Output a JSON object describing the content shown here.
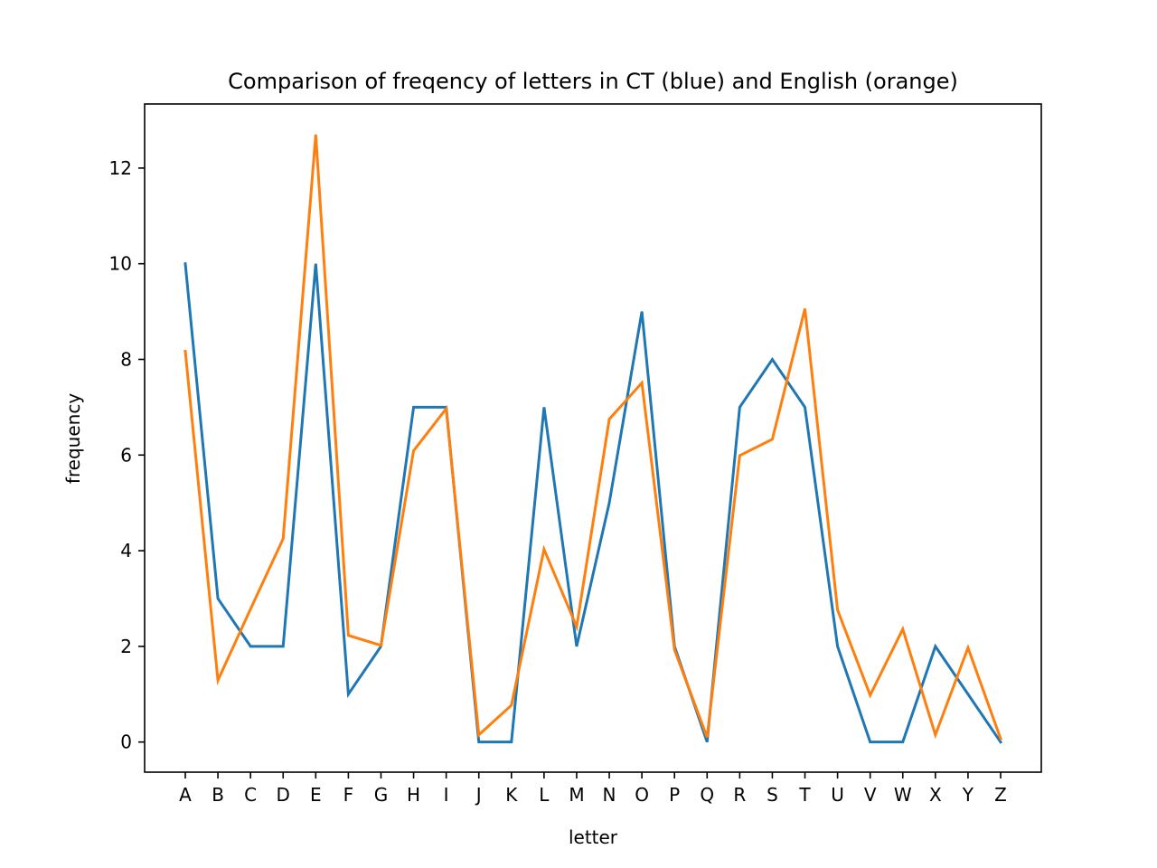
{
  "chart_data": {
    "type": "line",
    "title": "Comparison of freqency of letters in CT (blue) and English (orange)",
    "xlabel": "letter",
    "ylabel": "frequency",
    "categories": [
      "A",
      "B",
      "C",
      "D",
      "E",
      "F",
      "G",
      "H",
      "I",
      "J",
      "K",
      "L",
      "M",
      "N",
      "O",
      "P",
      "Q",
      "R",
      "S",
      "T",
      "U",
      "V",
      "W",
      "X",
      "Y",
      "Z"
    ],
    "yticks": [
      0,
      2,
      4,
      6,
      8,
      10,
      12
    ],
    "ylim": [
      -0.63,
      13.34
    ],
    "grid": false,
    "legend": "none",
    "series": [
      {
        "color": "#1f77b4",
        "values": [
          10,
          3,
          2,
          2,
          10,
          1,
          2,
          7,
          7,
          0,
          0,
          7,
          2,
          5,
          9,
          2,
          0,
          7,
          8,
          7,
          2,
          0,
          0,
          2,
          1,
          0
        ]
      },
      {
        "color": "#ff7f0e",
        "values": [
          8.17,
          1.29,
          2.78,
          4.25,
          12.7,
          2.23,
          2.02,
          6.09,
          6.97,
          0.15,
          0.77,
          4.03,
          2.41,
          6.75,
          7.51,
          1.93,
          0.1,
          5.99,
          6.33,
          9.06,
          2.76,
          0.98,
          2.36,
          0.15,
          1.97,
          0.07
        ]
      }
    ]
  }
}
